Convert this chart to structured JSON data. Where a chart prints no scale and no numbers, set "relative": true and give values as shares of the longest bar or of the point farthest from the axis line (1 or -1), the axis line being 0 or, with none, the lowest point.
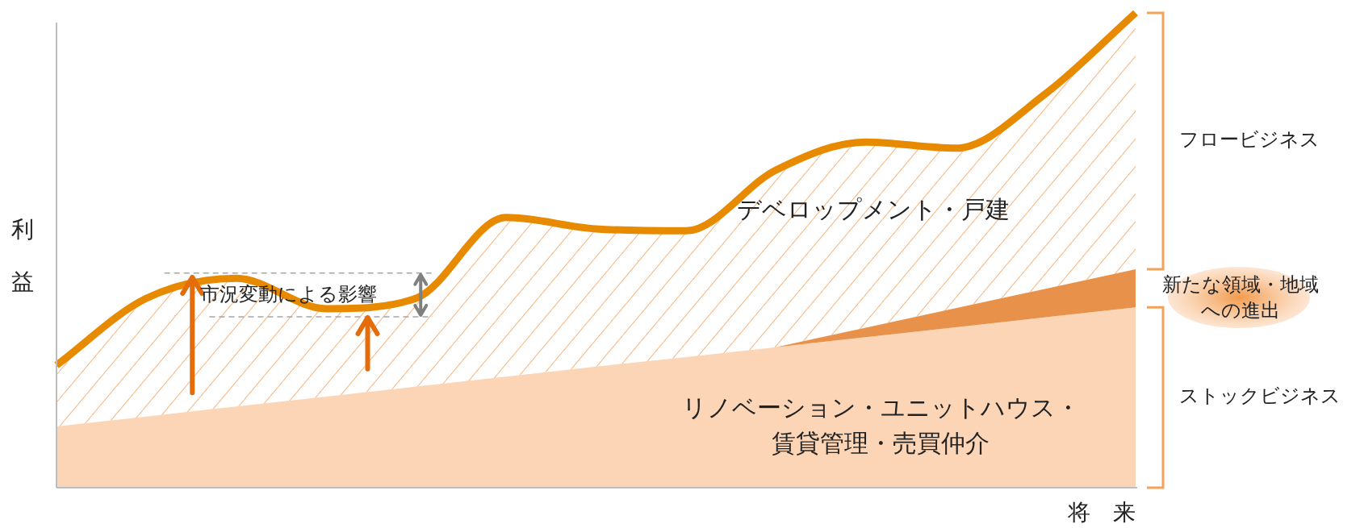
{
  "chart_data": {
    "type": "area",
    "relative": true,
    "stacked": true,
    "xlabel": "将　来",
    "ylabel": "利益",
    "categories": [
      null,
      null,
      null,
      null,
      null,
      null,
      null,
      null,
      null,
      null,
      null,
      null,
      null
    ],
    "series": [
      {
        "name": "リノベーション・ユニットハウス・賃貸管理・売買仲介",
        "color": "#fbd5b5",
        "values": [
          0.129,
          0.15,
          0.171,
          0.192,
          0.213,
          0.234,
          0.255,
          0.275,
          0.296,
          0.317,
          0.338,
          0.359,
          0.38
        ]
      },
      {
        "name": "新たな領域・地域への進出",
        "color": "#e8914a",
        "values": [
          0,
          0,
          0,
          0,
          0,
          0,
          0,
          0,
          0,
          0.02,
          0.04,
          0.06,
          0.08
        ]
      },
      {
        "name": "デベロップメント・戸建",
        "color": "#e88a00",
        "values": [
          0.129,
          0.249,
          0.27,
          0.185,
          0.186,
          0.335,
          0.29,
          0.266,
          0.373,
          0.391,
          0.337,
          0.411,
          0.54
        ]
      }
    ],
    "annotations": [
      "市況変動による影響",
      "フロービジネス",
      "ストックビジネス"
    ]
  }
}
